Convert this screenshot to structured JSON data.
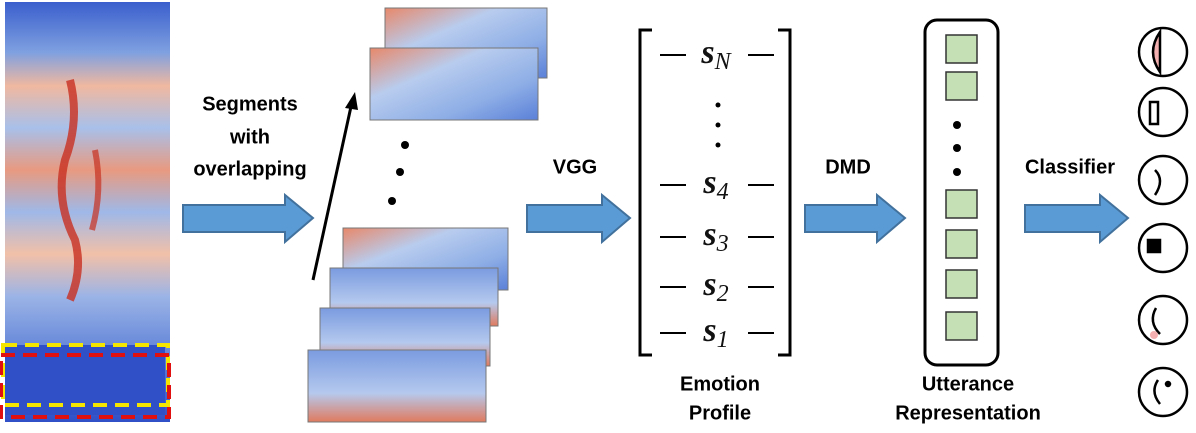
{
  "labels": {
    "segments": [
      "Segments",
      "with",
      "overlapping"
    ],
    "vgg": "VGG",
    "dmd": "DMD",
    "classifier": "Classifier",
    "emotion_profile": [
      "Emotion",
      "Profile"
    ],
    "utterance_representation": [
      "Utterance",
      "Representation"
    ]
  },
  "emotion_profile_rows": [
    {
      "symbol": "s",
      "subscript": "N"
    },
    {
      "symbol": "s",
      "subscript": "4"
    },
    {
      "symbol": "s",
      "subscript": "3"
    },
    {
      "symbol": "s",
      "subscript": "2"
    },
    {
      "symbol": "s",
      "subscript": "1"
    }
  ]
}
